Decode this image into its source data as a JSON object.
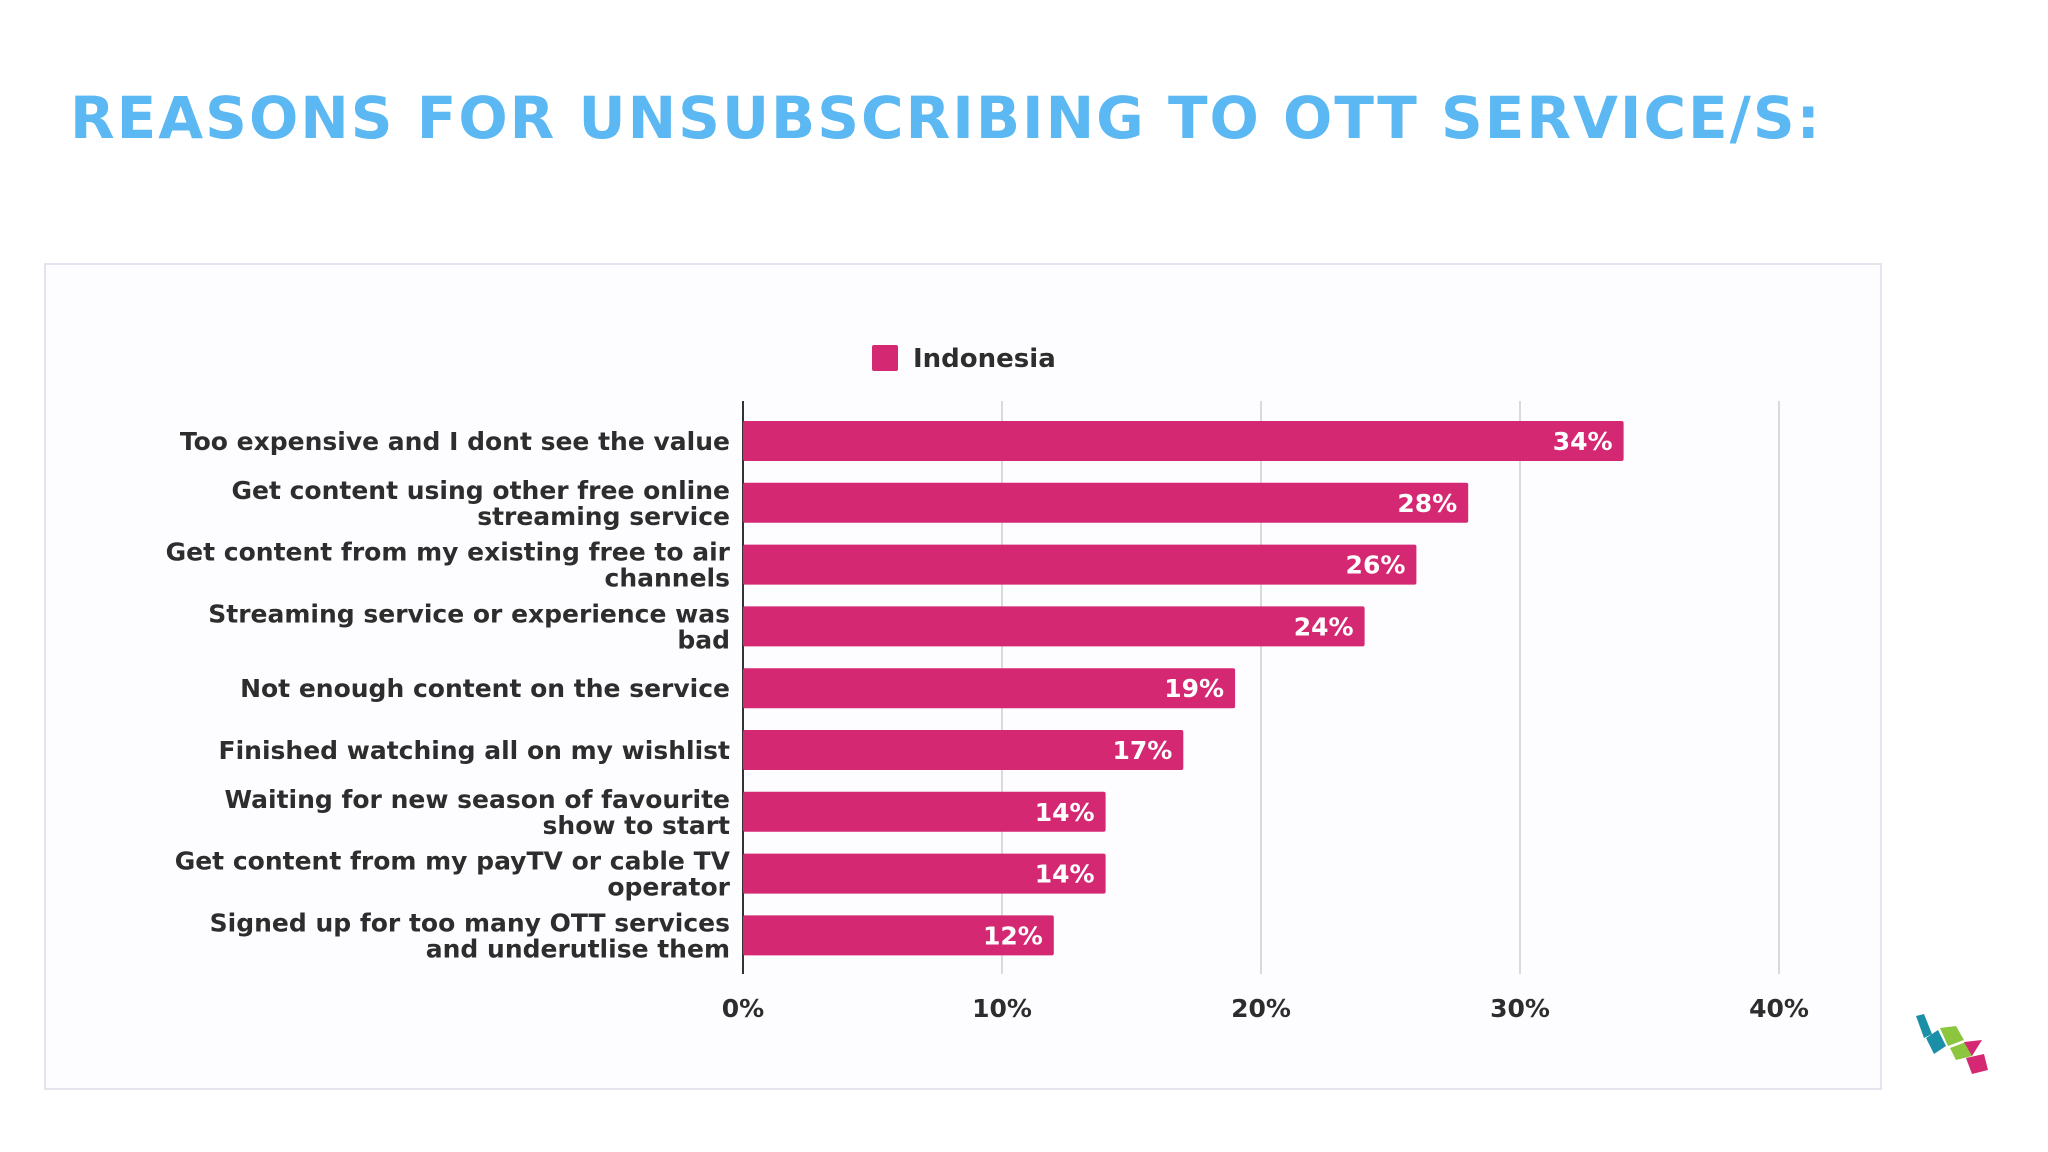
{
  "page": {
    "title": "REASONS FOR UNSUBSCRIBING TO OTT SERVICE/S:"
  },
  "colors": {
    "title": "#5bb8f2",
    "bar": "#d42873",
    "bar_label": "#ffffff",
    "axis_text": "#2d2d2d",
    "grid": "#cfcfcf",
    "logo_teal": "#1c8fa8",
    "logo_green": "#8cc63f",
    "logo_pink": "#d42873"
  },
  "logo": {
    "icon": "company-logo-icon"
  },
  "chart_data": {
    "type": "bar",
    "orientation": "horizontal",
    "title": "",
    "xlabel": "",
    "ylabel": "",
    "categories": [
      [
        "Too expensive and I dont see the value"
      ],
      [
        "Get content using other free online",
        "streaming service"
      ],
      [
        "Get content from my existing free to air",
        "channels"
      ],
      [
        "Streaming service or experience was",
        "bad"
      ],
      [
        "Not enough content on the service"
      ],
      [
        "Finished watching all on my wishlist"
      ],
      [
        "Waiting for new season of favourite",
        "show to start"
      ],
      [
        "Get content from my payTV or cable TV",
        "operator"
      ],
      [
        "Signed up for too many OTT services",
        "and underutlise them"
      ]
    ],
    "series": [
      {
        "name": "Indonesia",
        "values": [
          34,
          28,
          26,
          24,
          19,
          17,
          14,
          14,
          12
        ],
        "labels": [
          "34%",
          "28%",
          "26%",
          "24%",
          "19%",
          "17%",
          "14%",
          "14%",
          "12%"
        ]
      }
    ],
    "xlim": [
      0,
      40
    ],
    "xticks": [
      "0%",
      "10%",
      "20%",
      "30%",
      "40%"
    ],
    "grid": true,
    "legend_position": "top-center"
  }
}
